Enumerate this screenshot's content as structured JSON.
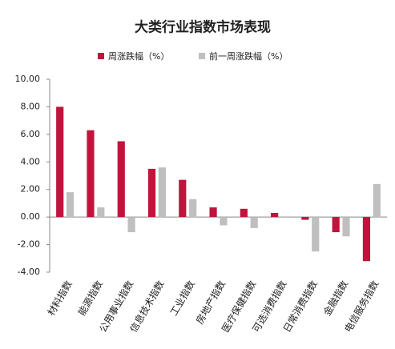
{
  "chart_data": {
    "type": "bar",
    "title": "大类行业指数市场表现",
    "categories": [
      "材料指数",
      "能源指数",
      "公用事业指数",
      "信息技术指数",
      "工业指数",
      "房地产指数",
      "医疗保健指数",
      "可选消费指数",
      "日常消费指数",
      "金融指数",
      "电信服务指数"
    ],
    "series": [
      {
        "name": "周涨跌幅（%）",
        "color": "#c0143c",
        "values": [
          8.0,
          6.3,
          5.5,
          3.5,
          2.7,
          0.7,
          0.6,
          0.3,
          -0.2,
          -1.1,
          -3.2
        ]
      },
      {
        "name": "前一周涨跌幅（%）",
        "color": "#bfbfbf",
        "values": [
          1.8,
          0.7,
          -1.1,
          3.6,
          1.3,
          -0.6,
          -0.8,
          -0.05,
          -2.5,
          -1.4,
          2.4
        ]
      }
    ],
    "ylim": [
      -4,
      10
    ],
    "yticks": [
      {
        "value": -4,
        "label": "-4.00"
      },
      {
        "value": -2,
        "label": "-2.00"
      },
      {
        "value": 0,
        "label": "0.00"
      },
      {
        "value": 2,
        "label": "2.00"
      },
      {
        "value": 4,
        "label": "4.00"
      },
      {
        "value": 6,
        "label": "6.00"
      },
      {
        "value": 8,
        "label": "8.00"
      },
      {
        "value": 10,
        "label": "10.00"
      }
    ],
    "grid": false,
    "legend": "top"
  }
}
